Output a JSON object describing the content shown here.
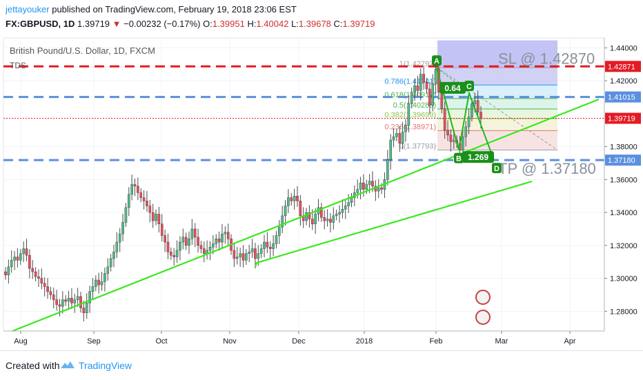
{
  "header": {
    "author": "jettayouker",
    "published_text": "published on TradingView.com, February 19, 2018 23:06 EST",
    "symbol": "FX:GBPUSD, 1D",
    "last": "1.39719",
    "arrow": "▼",
    "change": "−0.00232 (−0.17%)",
    "ohlc": {
      "o_label": "O:",
      "o": "1.39951",
      "h_label": "H:",
      "h": "1.40042",
      "l_label": "L:",
      "l": "1.39678",
      "c_label": "C:",
      "c": "1.39719"
    }
  },
  "legend": {
    "title": "British Pound/U.S. Dollar, 1D, FXCM",
    "indicator": "TDS"
  },
  "footer": {
    "created_with": "Created with",
    "brand": "TradingView"
  },
  "chart_data": {
    "type": "candlestick",
    "title": "British Pound/U.S. Dollar, 1D, FXCM",
    "x_ticks": [
      "Aug",
      "Sep",
      "Oct",
      "Nov",
      "Dec",
      "2018",
      "Feb",
      "Mar",
      "Apr"
    ],
    "y_ticks": [
      "1.44000",
      "1.42000",
      "1.38000",
      "1.36000",
      "1.34000",
      "1.32000",
      "1.30000",
      "1.28000"
    ],
    "ylim": [
      1.268,
      1.446
    ],
    "closes": [
      1.302,
      1.307,
      1.311,
      1.313,
      1.311,
      1.315,
      1.318,
      1.314,
      1.306,
      1.304,
      1.301,
      1.3,
      1.297,
      1.295,
      1.292,
      1.29,
      1.287,
      1.284,
      1.283,
      1.287,
      1.286,
      1.288,
      1.285,
      1.287,
      1.289,
      1.282,
      1.279,
      1.285,
      1.292,
      1.295,
      1.299,
      1.296,
      1.298,
      1.303,
      1.307,
      1.312,
      1.316,
      1.322,
      1.327,
      1.334,
      1.343,
      1.351,
      1.357,
      1.356,
      1.352,
      1.349,
      1.347,
      1.344,
      1.34,
      1.335,
      1.339,
      1.333,
      1.326,
      1.322,
      1.316,
      1.314,
      1.313,
      1.317,
      1.322,
      1.325,
      1.32,
      1.324,
      1.33,
      1.325,
      1.32,
      1.318,
      1.315,
      1.317,
      1.319,
      1.321,
      1.324,
      1.322,
      1.327,
      1.328,
      1.324,
      1.317,
      1.312,
      1.313,
      1.315,
      1.311,
      1.315,
      1.316,
      1.318,
      1.312,
      1.315,
      1.318,
      1.322,
      1.319,
      1.318,
      1.321,
      1.326,
      1.331,
      1.338,
      1.344,
      1.349,
      1.347,
      1.35,
      1.347,
      1.338,
      1.335,
      1.34,
      1.336,
      1.333,
      1.339,
      1.343,
      1.337,
      1.335,
      1.336,
      1.334,
      1.338,
      1.339,
      1.34,
      1.342,
      1.344,
      1.346,
      1.349,
      1.352,
      1.354,
      1.358,
      1.354,
      1.357,
      1.359,
      1.356,
      1.353,
      1.355,
      1.354,
      1.36,
      1.372,
      1.384,
      1.386,
      1.388,
      1.382,
      1.389,
      1.393,
      1.406,
      1.413,
      1.417,
      1.414,
      1.424,
      1.419,
      1.415,
      1.405,
      1.418,
      1.427,
      1.413,
      1.403,
      1.39,
      1.387,
      1.383,
      1.384,
      1.382,
      1.378,
      1.386,
      1.392,
      1.398,
      1.406,
      1.408,
      1.401,
      1.397
    ],
    "horizontal_levels": [
      {
        "name": "SL",
        "label": "SL @ 1.42870",
        "value": 1.4287,
        "axis_label": "1.42871",
        "color": "#e31b23",
        "style": "dashed"
      },
      {
        "name": "upper",
        "value": 1.41015,
        "axis_label": "1.41015",
        "color": "#5b8fe0",
        "style": "dashed"
      },
      {
        "name": "last",
        "value": 1.39719,
        "axis_label": "1.39719",
        "color": "#e31b23",
        "style": "dotted"
      },
      {
        "name": "TP",
        "label": "TP @ 1.37180",
        "value": 1.3718,
        "axis_label": "1.37180",
        "color": "#5b8fe0",
        "style": "dashed"
      }
    ],
    "fibonacci": [
      {
        "level": "1",
        "label": "1(1.42792)",
        "value": 1.42792
      },
      {
        "level": "0.786",
        "label": "0.786(1.41741)",
        "value": 1.41741
      },
      {
        "level": "0.618",
        "label": "0.618(1.40917)",
        "value": 1.40917
      },
      {
        "level": "0.5",
        "label": "0.5(1.40285)",
        "value": 1.40285
      },
      {
        "level": "0.382",
        "label": "0.382(1.39699)",
        "value": 1.39699
      },
      {
        "level": "0.236",
        "label": "0.236(1.38971)",
        "value": 1.38971
      },
      {
        "level": "0",
        "label": "0(1.37793)",
        "value": 1.37793
      }
    ],
    "pattern_points": [
      "A",
      "B",
      "C",
      "D"
    ],
    "pattern_ratios": [
      "0.64",
      "1.269"
    ]
  }
}
